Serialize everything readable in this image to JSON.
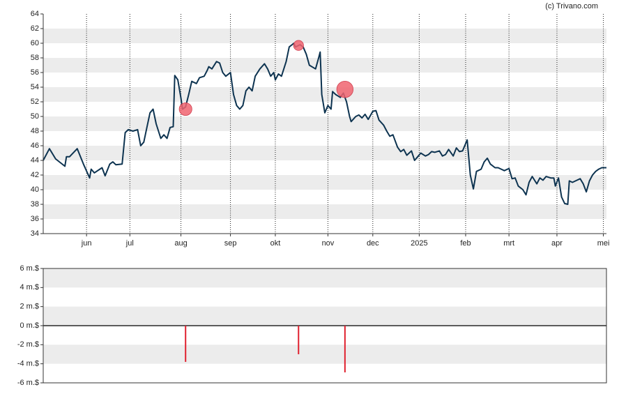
{
  "credit": "(c) Trivano.com",
  "chart_data": [
    {
      "type": "line",
      "x": [
        0,
        4,
        8,
        14,
        15,
        17,
        22,
        26,
        30,
        31,
        33,
        38,
        40,
        43,
        45,
        47,
        51,
        53,
        55,
        58,
        61,
        63,
        65,
        67,
        69,
        71,
        73,
        76,
        78,
        80,
        82,
        84,
        85,
        87,
        89,
        90,
        92,
        94,
        96,
        99,
        101,
        104,
        106,
        107,
        109,
        112,
        114,
        116,
        118,
        121,
        123,
        125,
        127,
        129,
        131,
        133,
        135,
        137,
        140,
        143,
        145,
        147,
        149,
        150,
        152,
        154,
        157,
        159,
        162,
        163,
        166,
        168,
        170,
        172,
        176,
        178,
        179,
        180,
        182,
        184,
        186,
        187,
        189,
        192,
        194,
        196,
        198,
        199,
        202,
        204,
        206,
        208,
        210,
        213,
        215,
        217,
        220,
        222,
        224,
        226,
        229,
        231,
        233,
        235,
        238,
        240,
        242,
        244,
        247,
        249,
        251,
        253,
        256,
        258,
        260,
        262,
        265,
        267,
        269,
        271,
        274,
        276,
        278,
        280,
        283,
        285,
        287,
        289,
        292,
        294,
        296,
        298,
        301,
        303,
        305,
        307,
        310,
        312,
        314,
        316,
        319,
        321,
        323,
        325,
        328,
        330,
        331,
        333,
        335,
        337,
        339,
        340,
        342,
        345,
        347,
        349,
        351,
        353,
        355,
        357,
        359,
        361,
        364
      ],
      "series": [
        {
          "color": "#0d3350",
          "values": [
            44,
            45.6,
            44.2,
            43.2,
            44.5,
            44.5,
            45.6,
            43.5,
            41.6,
            42.8,
            42.3,
            43,
            41.9,
            43.5,
            43.8,
            43.4,
            43.5,
            47.8,
            48.2,
            48,
            48.2,
            46,
            46.5,
            48.5,
            50.5,
            51,
            49,
            47,
            47.5,
            47,
            48.5,
            48.6,
            55.6,
            55,
            52.5,
            51,
            51.3,
            53,
            54.8,
            54.5,
            55.3,
            55.5,
            56.3,
            56.8,
            56.5,
            57.5,
            57.3,
            56,
            55.5,
            56,
            53,
            51.5,
            51,
            51.5,
            53.5,
            54,
            53.5,
            55.5,
            56.5,
            57.2,
            56.5,
            55.5,
            56,
            55,
            55.8,
            55.5,
            57.5,
            59.5,
            60,
            59.5,
            59.8,
            59.5,
            58.5,
            57,
            56.5,
            58,
            58.8,
            53,
            50.5,
            51.5,
            51,
            53.4,
            53,
            52.6,
            53.2,
            52,
            50,
            49.3,
            50,
            50.2,
            49.8,
            50.3,
            49.6,
            50.7,
            50.8,
            49.5,
            48.8,
            48,
            47.3,
            47.5,
            45.8,
            45.2,
            45.5,
            44.7,
            45.3,
            44,
            44.5,
            45,
            44.6,
            44.8,
            45.2,
            45.1,
            45.3,
            44.6,
            44.8,
            45.5,
            44.6,
            45.7,
            45.2,
            45.3,
            46.8,
            42,
            40.1,
            42.5,
            42.8,
            43.8,
            44.3,
            43.5,
            43,
            43,
            42.8,
            42.6,
            42.9,
            41.5,
            41.6,
            40.5,
            40,
            39.3,
            41,
            41.8,
            40.8,
            41.6,
            41.3,
            41.8,
            41.6,
            41.6,
            40.5,
            41.6,
            39,
            38.1,
            38,
            41.2,
            41,
            41.3,
            41.5,
            40.8,
            39.7,
            41.2,
            42,
            42.5,
            42.8,
            43,
            43
          ]
        }
      ],
      "markers": {
        "x": [
          92,
          165,
          195
        ],
        "values": [
          51,
          59.7,
          53.7
        ],
        "color": "#f06470"
      },
      "xlim": [
        0,
        364
      ],
      "xticks": [
        {
          "value": 28,
          "label": "jun"
        },
        {
          "value": 56,
          "label": "jul"
        },
        {
          "value": 89,
          "label": "aug"
        },
        {
          "value": 121,
          "label": "sep"
        },
        {
          "value": 150,
          "label": "okt"
        },
        {
          "value": 184,
          "label": "nov"
        },
        {
          "value": 213,
          "label": "dec"
        },
        {
          "value": 243,
          "label": "2025"
        },
        {
          "value": 273,
          "label": "feb"
        },
        {
          "value": 301,
          "label": "mrt"
        },
        {
          "value": 332,
          "label": "apr"
        },
        {
          "value": 362,
          "label": "mei"
        }
      ],
      "ylim": [
        34,
        64
      ],
      "yticks": [
        34,
        36,
        38,
        40,
        42,
        44,
        46,
        48,
        50,
        52,
        54,
        56,
        58,
        60,
        62,
        64
      ]
    },
    {
      "type": "bar",
      "x": [
        92,
        165,
        195
      ],
      "values": [
        -3.8,
        -3.0,
        -4.9
      ],
      "color": "#e0202e",
      "xlim": [
        0,
        364
      ],
      "ylim": [
        -6,
        6
      ],
      "yticks": [
        {
          "value": -6,
          "label": "-6 m.$"
        },
        {
          "value": -4,
          "label": "-4 m.$"
        },
        {
          "value": -2,
          "label": "-2 m.$"
        },
        {
          "value": 0,
          "label": "0 m.$"
        },
        {
          "value": 2,
          "label": "2 m.$"
        },
        {
          "value": 4,
          "label": "4 m.$"
        },
        {
          "value": 6,
          "label": "6 m.$"
        }
      ]
    }
  ]
}
